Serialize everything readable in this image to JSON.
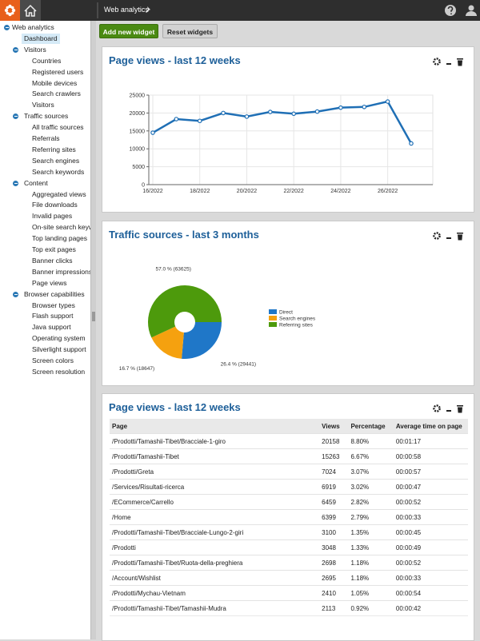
{
  "header": {
    "title": "Web analytics"
  },
  "buttons": [
    "Add new widget",
    "Reset widgets"
  ],
  "sidebar": {
    "title": "Web analytics",
    "items": [
      {
        "label": "Dashboard",
        "selected": true
      },
      {
        "label": "Visitors",
        "children": [
          "Countries",
          "Registered users",
          "Mobile devices",
          "Search crawlers",
          "Visitors"
        ]
      },
      {
        "label": "Traffic sources",
        "children": [
          "All traffic sources",
          "Referrals",
          "Referring sites",
          "Search engines",
          "Search keywords"
        ]
      },
      {
        "label": "Content",
        "children": [
          "Aggregated views",
          "File downloads",
          "Invalid pages",
          "On-site search keywords",
          "Top landing pages",
          "Top exit pages",
          "Banner clicks",
          "Banner impressions",
          "Page views"
        ]
      },
      {
        "label": "Browser capabilities",
        "children": [
          "Browser types",
          "Flash support",
          "Java support",
          "Operating system",
          "Silverlight support",
          "Screen colors",
          "Screen resolution"
        ]
      }
    ]
  },
  "chart_data": [
    {
      "type": "line",
      "title": "Page views - last 12 weeks",
      "categories": [
        "16/2022",
        null,
        "18/2022",
        null,
        "20/2022",
        null,
        "22/2022",
        null,
        "24/2022",
        null,
        "26/2022",
        null
      ],
      "values": [
        14500,
        18300,
        17800,
        20000,
        19000,
        20300,
        19800,
        20400,
        21500,
        21700,
        23200,
        11500
      ],
      "color": "#1f6fb5",
      "ylim": [
        0,
        25000
      ],
      "yticks": [
        0,
        5000,
        10000,
        15000,
        20000,
        25000
      ],
      "grid": true
    },
    {
      "type": "pie",
      "title": "Traffic sources - last 3 months",
      "categories": [
        "Direct",
        "Search engines",
        "Referring sites"
      ],
      "values": [
        26.4,
        16.7,
        57.0
      ],
      "value_labels": [
        "26.4 % (29441)",
        "16.7 % (18647)",
        "57.0 % (63625)"
      ],
      "colors": [
        "#1f77c8",
        "#f5a10f",
        "#4d9a0c"
      ],
      "legend": "right"
    }
  ],
  "table": {
    "title": "Page views - last 12 weeks",
    "columns": [
      "Page",
      "Views",
      "Percentage",
      "Average time on page"
    ],
    "rows": [
      [
        "/Prodotti/Tamashii-Tibet/Bracciale-1-giro",
        "20158",
        "8.80%",
        "00:01:17"
      ],
      [
        "/Prodotti/Tamashii-Tibet",
        "15263",
        "6.67%",
        "00:00:58"
      ],
      [
        "/Prodotti/Greta",
        "7024",
        "3.07%",
        "00:00:57"
      ],
      [
        "/Services/Risultati-ricerca",
        "6919",
        "3.02%",
        "00:00:47"
      ],
      [
        "/ECommerce/Carrello",
        "6459",
        "2.82%",
        "00:00:52"
      ],
      [
        "/Home",
        "6399",
        "2.79%",
        "00:00:33"
      ],
      [
        "/Prodotti/Tamashii-Tibet/Bracciale-Lungo-2-giri",
        "3100",
        "1.35%",
        "00:00:45"
      ],
      [
        "/Prodotti",
        "3048",
        "1.33%",
        "00:00:49"
      ],
      [
        "/Prodotti/Tamashii-Tibet/Ruota-della-preghiera",
        "2698",
        "1.18%",
        "00:00:52"
      ],
      [
        "/Account/Wishlist",
        "2695",
        "1.18%",
        "00:00:33"
      ],
      [
        "/Prodotti/Mychau-Vietnam",
        "2410",
        "1.05%",
        "00:00:54"
      ],
      [
        "/Prodotti/Tamashii-Tibet/Tamashii-Mudra",
        "2113",
        "0.92%",
        "00:00:42"
      ]
    ]
  }
}
